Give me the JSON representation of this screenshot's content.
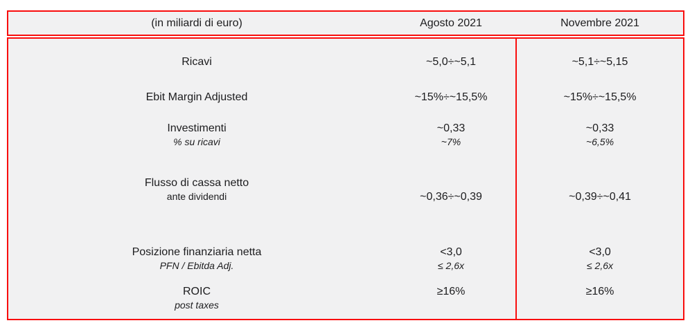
{
  "colors": {
    "table_border": "#f90d0d",
    "table_fill": "#f1f1f2",
    "text": "#1c1c1e",
    "page_background": "#ffffff"
  },
  "table": {
    "header": {
      "unit_label": "(in miliardi di euro)",
      "col_agosto": "Agosto 2021",
      "col_novembre": "Novembre 2021"
    },
    "rows": [
      {
        "label": "Ricavi",
        "agosto": "~5,0÷~5,1",
        "novembre": "~5,1÷~5,15"
      },
      {
        "label": "Ebit Margin Adjusted",
        "agosto": "~15%÷~15,5%",
        "novembre": "~15%÷~15,5%"
      },
      {
        "label": "Investimenti",
        "sublabel": "% su ricavi",
        "agosto": "~0,33",
        "agosto_sub": "~7%",
        "novembre": "~0,33",
        "novembre_sub": "~6,5%"
      },
      {
        "label": "Flusso di cassa netto",
        "sublabel": "ante dividendi",
        "agosto": "~0,36÷~0,39",
        "novembre": "~0,39÷~0,41"
      },
      {
        "label": "Posizione finanziaria netta",
        "sublabel": "PFN / Ebitda Adj.",
        "agosto": "<3,0",
        "agosto_sub": "≤ 2,6x",
        "novembre": "<3,0",
        "novembre_sub": "≤ 2,6x"
      },
      {
        "label": "ROIC",
        "sublabel": "post taxes",
        "agosto": "≥16%",
        "novembre": "≥16%"
      }
    ]
  }
}
